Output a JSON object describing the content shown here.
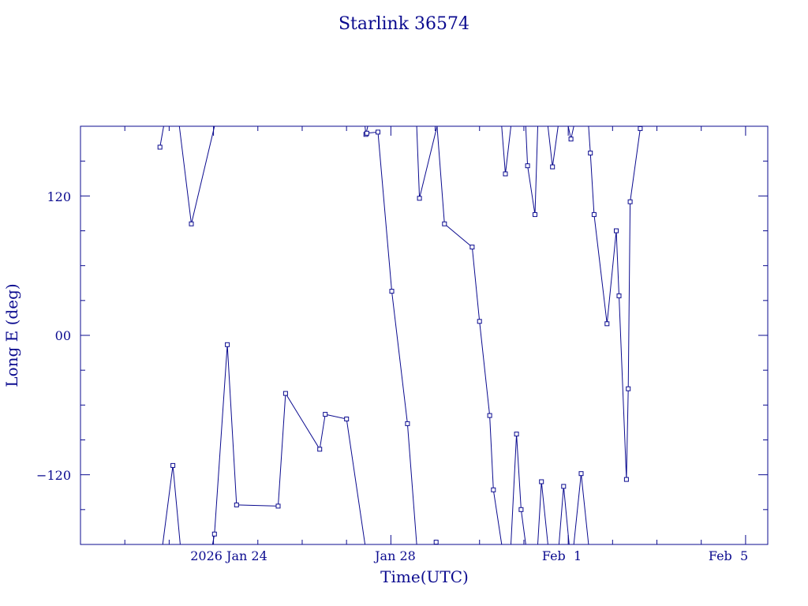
{
  "chart_data": {
    "type": "line",
    "title": "Starlink 36574",
    "xlabel": "Time(UTC)",
    "ylabel": "Long E (deg)",
    "x_tick_labels": [
      "2026 Jan 24",
      "Jan 28",
      "Feb  1",
      "Feb  5"
    ],
    "y_tick_labels": [
      "120",
      "00",
      "−120"
    ],
    "xlim": [
      "2026-01-21 00:00",
      "2026-02-05 12:00"
    ],
    "ylim": [
      -180,
      180
    ],
    "grid": false,
    "color": "#0b0b8f",
    "series": [
      {
        "points": [
          [
            "2026-01-22 20:30",
            -180
          ],
          [
            "2026-01-23 02:00",
            -112
          ],
          [
            "2026-01-23 06:00",
            -180
          ]
        ]
      },
      {
        "points": [
          [
            "2026-01-22 19:00",
            162
          ],
          [
            "2026-01-22 21:00",
            180
          ]
        ]
      },
      {
        "points": [
          [
            "2026-01-23 05:30",
            180
          ],
          [
            "2026-01-23 12:00",
            96
          ],
          [
            "2026-01-24 00:30",
            180
          ]
        ]
      },
      {
        "points": [
          [
            "2026-01-23 23:30",
            -180
          ],
          [
            "2026-01-24 00:30",
            -171
          ],
          [
            "2026-01-24 07:30",
            -8
          ],
          [
            "2026-01-24 12:30",
            -146
          ],
          [
            "2026-01-25 11:00",
            -147
          ],
          [
            "2026-01-25 15:00",
            -50
          ],
          [
            "2026-01-26 09:30",
            -98
          ],
          [
            "2026-01-26 12:30",
            -68
          ],
          [
            "2026-01-27 00:00",
            -72
          ],
          [
            "2026-01-27 10:00",
            -180
          ]
        ]
      },
      {
        "points": [
          [
            "2026-01-27 10:00",
            180
          ],
          [
            "2026-01-27 10:30",
            173
          ],
          [
            "2026-01-27 11:30",
            180
          ]
        ]
      },
      {
        "points": [
          [
            "2026-01-27 11:00",
            174
          ],
          [
            "2026-01-27 17:00",
            175
          ],
          [
            "2026-01-28 00:30",
            38
          ],
          [
            "2026-01-28 09:00",
            -76
          ],
          [
            "2026-01-28 14:00",
            -180
          ]
        ]
      },
      {
        "points": [
          [
            "2026-01-28 14:00",
            180
          ],
          [
            "2026-01-28 15:30",
            118
          ],
          [
            "2026-01-29 01:00",
            180
          ]
        ]
      },
      {
        "points": [
          [
            "2026-01-29 00:30",
            -178
          ],
          [
            "2026-01-29 01:30",
            -180
          ]
        ]
      },
      {
        "points": [
          [
            "2026-01-29 01:00",
            180
          ],
          [
            "2026-01-29 05:00",
            96
          ],
          [
            "2026-01-29 20:00",
            76
          ],
          [
            "2026-01-30 00:00",
            12
          ],
          [
            "2026-01-30 05:30",
            -69
          ],
          [
            "2026-01-30 07:30",
            -133
          ],
          [
            "2026-01-30 12:00",
            -180
          ]
        ]
      },
      {
        "points": [
          [
            "2026-01-30 12:00",
            180
          ],
          [
            "2026-01-30 14:00",
            139
          ],
          [
            "2026-01-30 17:00",
            180
          ]
        ]
      },
      {
        "points": [
          [
            "2026-01-30 17:00",
            -180
          ],
          [
            "2026-01-30 20:00",
            -85
          ],
          [
            "2026-01-30 22:30",
            -150
          ],
          [
            "2026-01-31 01:00",
            -180
          ]
        ]
      },
      {
        "points": [
          [
            "2026-01-31 01:00",
            180
          ],
          [
            "2026-01-31 02:00",
            146
          ],
          [
            "2026-01-31 06:00",
            104
          ],
          [
            "2026-01-31 07:30",
            180
          ]
        ]
      },
      {
        "points": [
          [
            "2026-01-31 07:30",
            -180
          ],
          [
            "2026-01-31 09:30",
            -126
          ],
          [
            "2026-01-31 13:00",
            -180
          ]
        ]
      },
      {
        "points": [
          [
            "2026-01-31 13:00",
            180
          ],
          [
            "2026-01-31 15:30",
            145
          ],
          [
            "2026-01-31 18:30",
            180
          ]
        ]
      },
      {
        "points": [
          [
            "2026-01-31 19:00",
            -180
          ],
          [
            "2026-01-31 21:30",
            -130
          ],
          [
            "2026-02-01 00:30",
            -180
          ]
        ]
      },
      {
        "points": [
          [
            "2026-02-01 00:00",
            180
          ],
          [
            "2026-02-01 01:30",
            169
          ],
          [
            "2026-02-01 03:00",
            180
          ]
        ]
      },
      {
        "points": [
          [
            "2026-02-01 03:00",
            -180
          ],
          [
            "2026-02-01 07:00",
            -119
          ],
          [
            "2026-02-01 11:00",
            -180
          ]
        ]
      },
      {
        "points": [
          [
            "2026-02-01 11:00",
            180
          ],
          [
            "2026-02-01 12:00",
            157
          ],
          [
            "2026-02-01 14:00",
            104
          ],
          [
            "2026-02-01 21:00",
            10
          ],
          [
            "2026-02-02 02:00",
            90
          ],
          [
            "2026-02-02 03:30",
            34
          ],
          [
            "2026-02-02 07:30",
            -124
          ],
          [
            "2026-02-02 08:30",
            -46
          ],
          [
            "2026-02-02 09:30",
            115
          ],
          [
            "2026-02-02 15:00",
            178
          ],
          [
            "2026-02-02 15:30",
            180
          ]
        ]
      }
    ]
  }
}
